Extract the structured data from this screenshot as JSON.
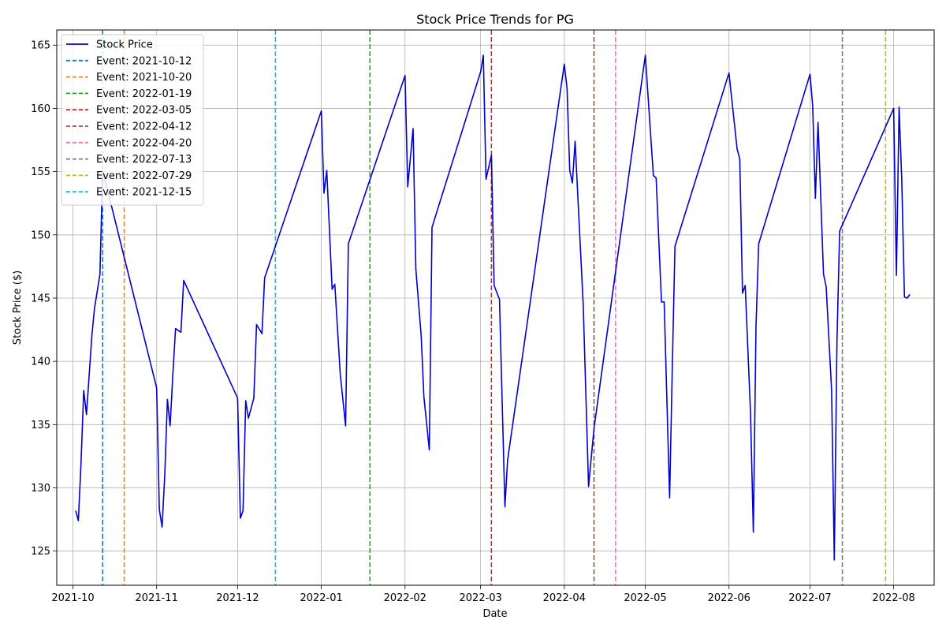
{
  "chart_data": {
    "type": "line",
    "title": "Stock Price Trends for PG",
    "xlabel": "Date",
    "ylabel": "Stock Price ($)",
    "xlim": [
      "2021-09-25",
      "2022-08-16"
    ],
    "ylim": [
      122.3,
      166.2
    ],
    "x_ticks": [
      "2021-10-01",
      "2021-11-01",
      "2021-12-01",
      "2022-01-01",
      "2022-02-01",
      "2022-03-01",
      "2022-04-01",
      "2022-05-01",
      "2022-06-01",
      "2022-07-01",
      "2022-08-01"
    ],
    "x_tick_labels": [
      "2021-10",
      "2021-11",
      "2021-12",
      "2022-01",
      "2022-02",
      "2022-03",
      "2022-04",
      "2022-05",
      "2022-06",
      "2022-07",
      "2022-08"
    ],
    "y_ticks": [
      125,
      130,
      135,
      140,
      145,
      150,
      155,
      160,
      165
    ],
    "grid": true,
    "legend_position": "top-left",
    "series": [
      {
        "name": "Stock Price",
        "color": "#0000cd",
        "points": [
          [
            "2021-10-02",
            128.2
          ],
          [
            "2021-10-03",
            127.4
          ],
          [
            "2021-10-04",
            132.0
          ],
          [
            "2021-10-05",
            137.7
          ],
          [
            "2021-10-06",
            135.8
          ],
          [
            "2021-10-08",
            142.0
          ],
          [
            "2021-10-09",
            144.2
          ],
          [
            "2021-10-11",
            146.9
          ],
          [
            "2021-10-12",
            155.1
          ],
          [
            "2021-11-01",
            137.9
          ],
          [
            "2021-11-02",
            128.3
          ],
          [
            "2021-11-03",
            126.9
          ],
          [
            "2021-11-04",
            131.0
          ],
          [
            "2021-11-05",
            137.0
          ],
          [
            "2021-11-06",
            134.9
          ],
          [
            "2021-11-07",
            139.0
          ],
          [
            "2021-11-08",
            142.6
          ],
          [
            "2021-11-10",
            142.3
          ],
          [
            "2021-11-11",
            146.4
          ],
          [
            "2021-12-01",
            137.1
          ],
          [
            "2021-12-02",
            127.6
          ],
          [
            "2021-12-03",
            128.2
          ],
          [
            "2021-12-04",
            136.9
          ],
          [
            "2021-12-05",
            135.5
          ],
          [
            "2021-12-07",
            137.1
          ],
          [
            "2021-12-08",
            142.9
          ],
          [
            "2021-12-10",
            142.2
          ],
          [
            "2021-12-11",
            146.6
          ],
          [
            "2022-01-01",
            159.8
          ],
          [
            "2022-01-02",
            153.3
          ],
          [
            "2022-01-03",
            155.1
          ],
          [
            "2022-01-05",
            145.7
          ],
          [
            "2022-01-06",
            146.1
          ],
          [
            "2022-01-08",
            139.0
          ],
          [
            "2022-01-10",
            134.9
          ],
          [
            "2022-01-11",
            149.3
          ],
          [
            "2022-02-01",
            162.6
          ],
          [
            "2022-02-02",
            153.8
          ],
          [
            "2022-02-04",
            158.4
          ],
          [
            "2022-02-05",
            147.3
          ],
          [
            "2022-02-07",
            142.0
          ],
          [
            "2022-02-08",
            137.2
          ],
          [
            "2022-02-10",
            133.0
          ],
          [
            "2022-02-11",
            150.6
          ],
          [
            "2022-03-01",
            162.9
          ],
          [
            "2022-03-02",
            164.2
          ],
          [
            "2022-03-03",
            154.4
          ],
          [
            "2022-03-05",
            156.3
          ],
          [
            "2022-03-06",
            146.0
          ],
          [
            "2022-03-08",
            144.9
          ],
          [
            "2022-03-10",
            128.5
          ],
          [
            "2022-03-11",
            132.2
          ],
          [
            "2022-04-01",
            163.5
          ],
          [
            "2022-04-02",
            161.6
          ],
          [
            "2022-04-03",
            155.1
          ],
          [
            "2022-04-04",
            154.1
          ],
          [
            "2022-04-05",
            157.4
          ],
          [
            "2022-04-08",
            144.5
          ],
          [
            "2022-04-10",
            130.1
          ],
          [
            "2022-04-12",
            134.7
          ],
          [
            "2022-05-01",
            164.2
          ],
          [
            "2022-05-04",
            154.7
          ],
          [
            "2022-05-05",
            154.5
          ],
          [
            "2022-05-07",
            144.7
          ],
          [
            "2022-05-08",
            144.7
          ],
          [
            "2022-05-10",
            129.2
          ],
          [
            "2022-05-11",
            139.5
          ],
          [
            "2022-05-12",
            149.1
          ],
          [
            "2022-06-01",
            162.8
          ],
          [
            "2022-06-04",
            156.8
          ],
          [
            "2022-06-05",
            156.0
          ],
          [
            "2022-06-06",
            145.4
          ],
          [
            "2022-06-07",
            146.0
          ],
          [
            "2022-06-09",
            135.8
          ],
          [
            "2022-06-10",
            126.5
          ],
          [
            "2022-06-11",
            142.8
          ],
          [
            "2022-06-12",
            149.3
          ],
          [
            "2022-07-01",
            162.7
          ],
          [
            "2022-07-02",
            160.2
          ],
          [
            "2022-07-03",
            152.9
          ],
          [
            "2022-07-04",
            158.9
          ],
          [
            "2022-07-06",
            146.9
          ],
          [
            "2022-07-07",
            145.9
          ],
          [
            "2022-07-09",
            137.7
          ],
          [
            "2022-07-10",
            124.3
          ],
          [
            "2022-07-11",
            141.6
          ],
          [
            "2022-07-12",
            150.3
          ],
          [
            "2022-08-01",
            160.0
          ],
          [
            "2022-08-02",
            146.8
          ],
          [
            "2022-08-03",
            160.1
          ],
          [
            "2022-08-04",
            154.3
          ],
          [
            "2022-08-05",
            145.1
          ],
          [
            "2022-08-06",
            145.0
          ],
          [
            "2022-08-07",
            145.3
          ]
        ]
      }
    ],
    "events": [
      {
        "label": "Event: 2021-10-12",
        "date": "2021-10-12",
        "color": "#1f77b4"
      },
      {
        "label": "Event: 2021-10-20",
        "date": "2021-10-20",
        "color": "#ff7f0e"
      },
      {
        "label": "Event: 2022-01-19",
        "date": "2022-01-19",
        "color": "#2ca02c"
      },
      {
        "label": "Event: 2022-03-05",
        "date": "2022-03-05",
        "color": "#d62728"
      },
      {
        "label": "Event: 2022-04-12",
        "date": "2022-04-12",
        "color": "#8c564b"
      },
      {
        "label": "Event: 2022-04-20",
        "date": "2022-04-20",
        "color": "#e377c2"
      },
      {
        "label": "Event: 2022-07-13",
        "date": "2022-07-13",
        "color": "#7f7f7f"
      },
      {
        "label": "Event: 2022-07-29",
        "date": "2022-07-29",
        "color": "#bcbd22"
      },
      {
        "label": "Event: 2021-12-15",
        "date": "2021-12-15",
        "color": "#17becf"
      }
    ]
  }
}
